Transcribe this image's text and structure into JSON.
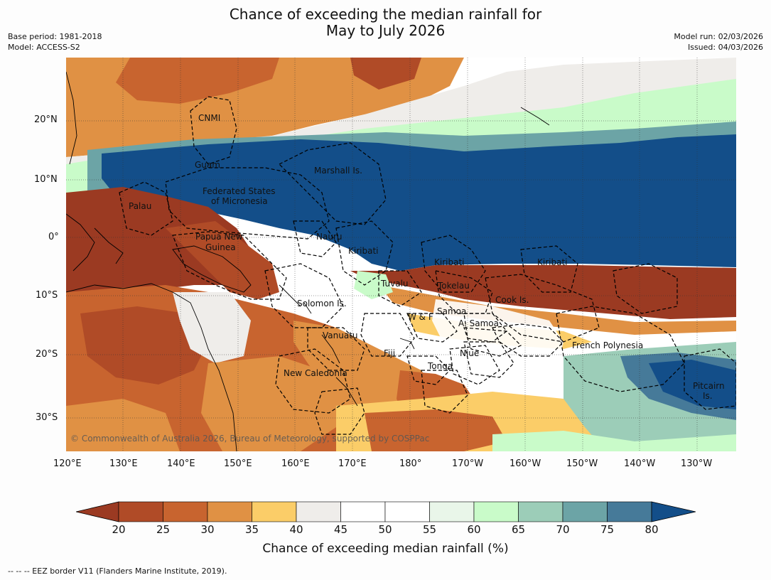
{
  "title_line1": "Chance of exceeding the median rainfall for",
  "title_line2": "May to July 2026",
  "base_period": "Base period: 1981-2018",
  "model": "Model: ACCESS-S2",
  "model_run": "Model run: 02/03/2026",
  "issued": "Issued: 04/03/2026",
  "copyright": "© Commonwealth of Australia 2026, Bureau of Meteorology, supported by COSPPac",
  "lat_labels": [
    "20°N",
    "10°N",
    "0°",
    "10°S",
    "20°S",
    "30°S"
  ],
  "lon_labels": [
    "120°E",
    "130°E",
    "140°E",
    "150°E",
    "160°E",
    "170°E",
    "180°",
    "170°W",
    "160°W",
    "150°W",
    "140°W",
    "130°W"
  ],
  "region_labels": {
    "cnmi": "CNMI",
    "guam": "Guam",
    "marshall": "Marshall Is.",
    "fsm1": "Federated States",
    "fsm2": "of Micronesia",
    "palau": "Palau",
    "png1": "Papua New",
    "png2": "Guinea",
    "nauru": "Nauru",
    "kiribati_w": "Kiribati",
    "kiribati_c": "Kiribati",
    "kiribati_e": "Kiribati",
    "tuvalu": "Tuvalu",
    "tokelau": "Tokelau",
    "cook": "Cook Is.",
    "solomon": "Solomon Is.",
    "samoa": "Samoa",
    "wf": "W & F",
    "asamoa": "A. Samoa",
    "vanuatu": "Vanuatu",
    "fiji": "Fiji",
    "niue": "Niue",
    "tonga": "Tonga",
    "frpoly": "French Polynesia",
    "newcal": "New Caledonia",
    "pitcairn1": "Pitcairn",
    "pitcairn2": "Is."
  },
  "colorbar": {
    "ticks": [
      "20",
      "25",
      "30",
      "35",
      "40",
      "45",
      "50",
      "55",
      "60",
      "65",
      "70",
      "75",
      "80"
    ],
    "colors": [
      "#9b3a22",
      "#b04b27",
      "#c8642f",
      "#e09144",
      "#fbcd68",
      "#efedea",
      "#ffffff",
      "#ffffff",
      "#e9f6e9",
      "#c9fbc9",
      "#9ccdb8",
      "#6ca4a6",
      "#467a99",
      "#134e89"
    ],
    "label": "Chance of exceeding median rainfall (%)"
  },
  "footnote": "--  --  -- EEZ border V11 (Flanders Marine Institute, 2019)."
}
